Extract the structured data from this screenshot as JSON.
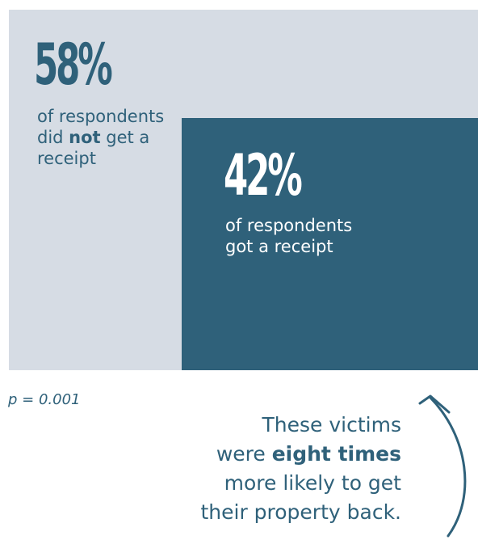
{
  "chart_data": {
    "type": "area",
    "title": "",
    "categories": [
      "did not get a receipt",
      "got a receipt"
    ],
    "values": [
      58,
      42
    ],
    "unit": "%",
    "colors": {
      "not_receipt": "#d6dce4",
      "receipt": "#2f617a"
    }
  },
  "stat_58": {
    "percent": "58%",
    "caption_1": "of respondents",
    "caption_2a": "did ",
    "caption_2b": "not",
    "caption_2c": " get a",
    "caption_3": "receipt"
  },
  "stat_42": {
    "percent": "42%",
    "caption_1": "of respondents",
    "caption_2": "got a receipt"
  },
  "p_value": "p = 0.001",
  "note": {
    "line_1": "These victims",
    "line_2a": "were ",
    "line_2b": "eight times",
    "line_3": "more likely to get",
    "line_4": "their property back."
  },
  "icons": {
    "arrow": "curved-arrow-up-icon"
  }
}
